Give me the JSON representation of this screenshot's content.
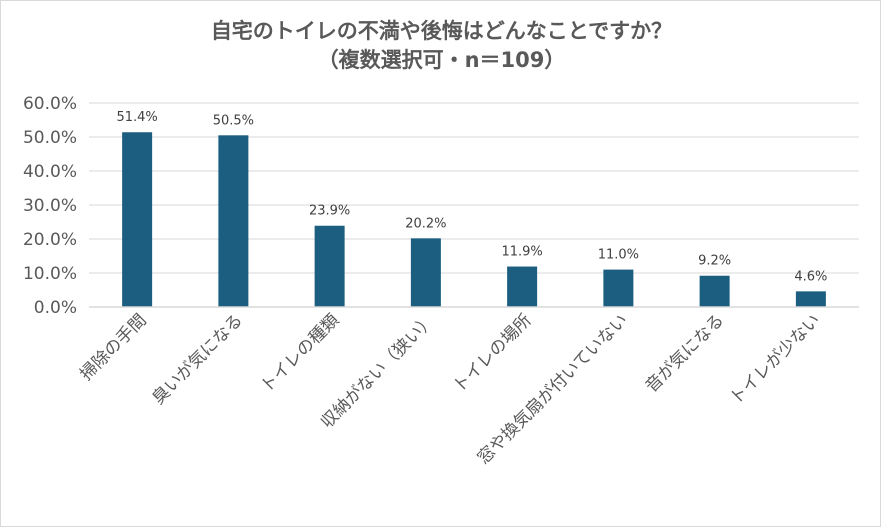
{
  "chart_data": {
    "type": "bar",
    "title": "自宅のトイレの不満や後悔はどんなことですか？",
    "subtitle": "（複数選択可・n＝109）",
    "categories": [
      "掃除の手間",
      "臭いが気になる",
      "トイレの種類",
      "収納がない（狭い）",
      "トイレの場所",
      "窓や換気扇が付いていない",
      "音が気になる",
      "トイレが少ない"
    ],
    "values": [
      51.4,
      50.5,
      23.9,
      20.2,
      11.9,
      11.0,
      9.2,
      4.6
    ],
    "value_labels": [
      "51.4%",
      "50.5%",
      "23.9%",
      "20.2%",
      "11.9%",
      "11.0%",
      "9.2%",
      "4.6%"
    ],
    "ylim": [
      0,
      60
    ],
    "yticks": [
      0,
      10,
      20,
      30,
      40,
      50,
      60
    ],
    "ytick_labels": [
      "0.0%",
      "10.0%",
      "20.0%",
      "30.0%",
      "40.0%",
      "50.0%",
      "60.0%"
    ],
    "grid": true,
    "legend": "none",
    "bar_color": "#1b5e80",
    "grid_color": "#d9d9d9",
    "text_color": "#595959"
  }
}
